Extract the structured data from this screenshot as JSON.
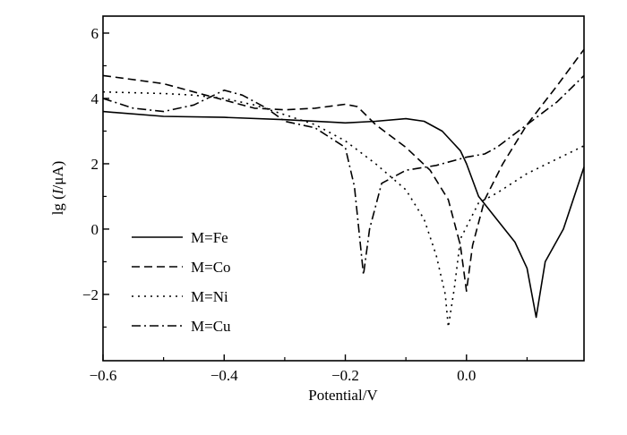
{
  "chart_data": {
    "type": "line",
    "title": "",
    "xlabel": "Potential/V",
    "ylabel_prefix": "lg (",
    "ylabel_italic": "I",
    "ylabel_suffix": "/μA)",
    "xlim": [
      -0.6,
      0.194
    ],
    "ylim": [
      -4.03,
      6.52
    ],
    "xticks": [
      -0.6,
      -0.4,
      -0.2,
      0.0
    ],
    "xtick_labels": [
      "−0.6",
      "−0.4",
      "−0.2",
      "0.0"
    ],
    "xminor": [
      -0.5,
      -0.3,
      -0.1,
      0.1
    ],
    "yticks": [
      6,
      4,
      2,
      0,
      -2
    ],
    "ytick_labels": [
      "6",
      "4",
      "2",
      "0",
      "−2"
    ],
    "yminor": [
      5,
      3,
      1,
      -1,
      -3
    ],
    "grid": false,
    "legend_position": "lower-left",
    "series": [
      {
        "name": "M=Fe",
        "style": "solid",
        "x": [
          -0.6,
          -0.5,
          -0.4,
          -0.3,
          -0.2,
          -0.15,
          -0.1,
          -0.07,
          -0.04,
          -0.01,
          0.0,
          0.02,
          0.05,
          0.08,
          0.1,
          0.115,
          0.13,
          0.16,
          0.194
        ],
        "y": [
          3.6,
          3.45,
          3.42,
          3.35,
          3.25,
          3.3,
          3.38,
          3.3,
          3.0,
          2.4,
          2.0,
          1.0,
          0.3,
          -0.4,
          -1.2,
          -2.7,
          -1.0,
          0.0,
          1.9
        ]
      },
      {
        "name": "M=Co",
        "style": "dashed",
        "x": [
          -0.6,
          -0.5,
          -0.45,
          -0.4,
          -0.35,
          -0.3,
          -0.25,
          -0.2,
          -0.18,
          -0.15,
          -0.1,
          -0.06,
          -0.03,
          -0.01,
          0.0,
          0.01,
          0.03,
          0.06,
          0.1,
          0.15,
          0.194
        ],
        "y": [
          4.7,
          4.45,
          4.2,
          3.95,
          3.7,
          3.65,
          3.7,
          3.82,
          3.75,
          3.2,
          2.5,
          1.8,
          0.9,
          -0.5,
          -1.9,
          -0.5,
          0.9,
          2.0,
          3.2,
          4.4,
          5.5
        ]
      },
      {
        "name": "M=Ni",
        "style": "dotted",
        "x": [
          -0.6,
          -0.5,
          -0.45,
          -0.4,
          -0.35,
          -0.3,
          -0.25,
          -0.2,
          -0.15,
          -0.1,
          -0.07,
          -0.05,
          -0.035,
          -0.03,
          -0.02,
          -0.01,
          0.02,
          0.05,
          0.1,
          0.194
        ],
        "y": [
          4.2,
          4.15,
          4.1,
          4.0,
          3.8,
          3.5,
          3.2,
          2.7,
          2.0,
          1.2,
          0.3,
          -0.8,
          -2.0,
          -3.0,
          -1.8,
          -0.3,
          0.8,
          1.1,
          1.7,
          2.55
        ]
      },
      {
        "name": "M=Cu",
        "style": "dashdot",
        "x": [
          -0.6,
          -0.55,
          -0.5,
          -0.45,
          -0.4,
          -0.37,
          -0.33,
          -0.3,
          -0.25,
          -0.2,
          -0.185,
          -0.17,
          -0.16,
          -0.14,
          -0.1,
          -0.05,
          0.0,
          0.03,
          0.05,
          0.1,
          0.15,
          0.194
        ],
        "y": [
          4.0,
          3.7,
          3.6,
          3.8,
          4.25,
          4.1,
          3.7,
          3.3,
          3.1,
          2.5,
          1.3,
          -1.4,
          0.0,
          1.4,
          1.8,
          1.95,
          2.2,
          2.3,
          2.5,
          3.2,
          3.9,
          4.7
        ]
      }
    ]
  }
}
